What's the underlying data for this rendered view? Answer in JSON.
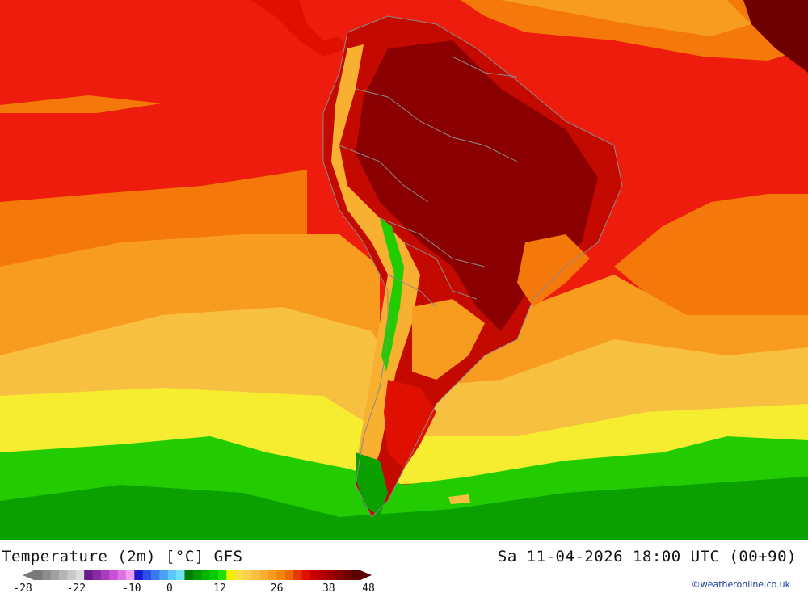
{
  "header": {
    "title": "Temperature (2m) [°C] GFS",
    "datetime": "Sa 11-04-2026 18:00 UTC (00+90)"
  },
  "legend": {
    "tick_labels": [
      "-28",
      "-22",
      "-10",
      "0",
      "12",
      "26",
      "38",
      "48"
    ],
    "colors": [
      "#7a7a7a",
      "#8c8c8c",
      "#a0a0a0",
      "#b4b4b4",
      "#c8c8c8",
      "#dcdcdc",
      "#6a1a8a",
      "#8a2aa0",
      "#a83cbc",
      "#c850d4",
      "#e070e8",
      "#f0a0f0",
      "#1a1acc",
      "#2a50e8",
      "#3a78f0",
      "#4aa0f4",
      "#5ac8f8",
      "#70e0fa",
      "#007a00",
      "#009a00",
      "#00b400",
      "#00cc00",
      "#22dd00",
      "#f0f000",
      "#f8e040",
      "#f8d050",
      "#f8c040",
      "#f8b030",
      "#f89c20",
      "#f08810",
      "#ee6a00",
      "#e83800",
      "#e01000",
      "#cc0000",
      "#b40000",
      "#9c0000",
      "#880000",
      "#700000",
      "#5a0000"
    ]
  },
  "credit": "©weatheronline.co.uk"
}
